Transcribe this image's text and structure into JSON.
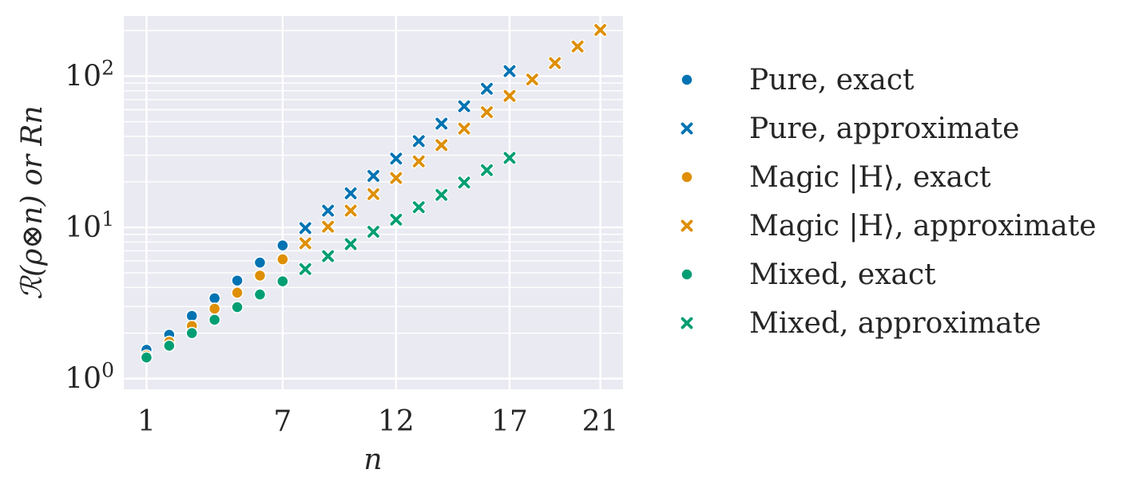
{
  "chart_data": {
    "type": "scatter",
    "title": "",
    "xlabel": "n",
    "ylabel": "ℛ(ρ⊗n) or Rn",
    "yscale": "log",
    "xlim": [
      0,
      22
    ],
    "ylim": [
      0.85,
      250
    ],
    "x_ticks": [
      1,
      7,
      12,
      17,
      21
    ],
    "y_ticks": [
      {
        "value": 1,
        "base": "10",
        "exp": "0"
      },
      {
        "value": 10,
        "base": "10",
        "exp": "1"
      },
      {
        "value": 100,
        "base": "10",
        "exp": "2"
      }
    ],
    "grid": true,
    "grid_color": "#ffffff",
    "background": "#eaeaf2",
    "legend_position": "outside-right",
    "series": [
      {
        "name": "Pure, exact",
        "marker": "circle",
        "color": "#0173b2",
        "x": [
          1,
          2,
          3,
          4,
          5,
          6,
          7
        ],
        "y": [
          1.55,
          1.95,
          2.6,
          3.4,
          4.45,
          5.85,
          7.6
        ]
      },
      {
        "name": "Pure, approximate",
        "marker": "x",
        "color": "#0173b2",
        "x": [
          8,
          9,
          10,
          11,
          12,
          13,
          14,
          15,
          16,
          17
        ],
        "y": [
          9.9,
          12.9,
          16.8,
          21.9,
          28.5,
          37.2,
          48.5,
          63.2,
          82.5,
          108
        ]
      },
      {
        "name": "Magic |H⟩, exact",
        "marker": "circle",
        "color": "#de8f05",
        "x": [
          1,
          2,
          3,
          4,
          5,
          6,
          7
        ],
        "y": [
          1.42,
          1.75,
          2.23,
          2.9,
          3.7,
          4.8,
          6.15
        ]
      },
      {
        "name": "Magic |H⟩, approximate",
        "marker": "x",
        "color": "#de8f05",
        "x": [
          8,
          9,
          10,
          11,
          12,
          13,
          14,
          15,
          16,
          17,
          18,
          19,
          20,
          21
        ],
        "y": [
          7.85,
          10.1,
          12.9,
          16.6,
          21.2,
          27.3,
          35.0,
          45.0,
          57.8,
          74.0,
          95.0,
          122,
          157,
          202
        ]
      },
      {
        "name": "Mixed, exact",
        "marker": "circle",
        "color": "#029e73",
        "x": [
          1,
          2,
          3,
          4,
          5,
          6,
          7
        ],
        "y": [
          1.38,
          1.65,
          2.0,
          2.45,
          2.97,
          3.6,
          4.4
        ]
      },
      {
        "name": "Mixed, approximate",
        "marker": "x",
        "color": "#029e73",
        "x": [
          8,
          9,
          10,
          11,
          12,
          13,
          14,
          15,
          16,
          17
        ],
        "y": [
          5.3,
          6.45,
          7.75,
          9.35,
          11.25,
          13.6,
          16.4,
          19.8,
          23.9,
          28.8
        ]
      }
    ]
  }
}
